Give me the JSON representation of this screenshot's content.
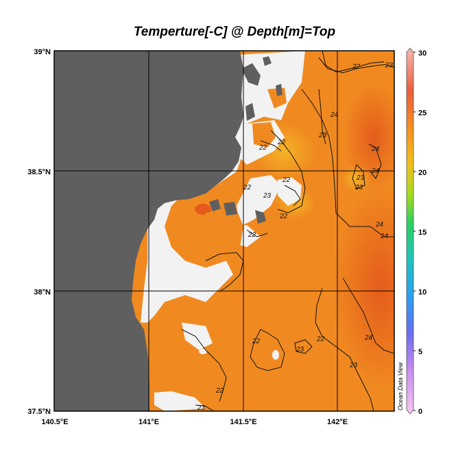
{
  "title": "Temperture[-C] @ Depth[m]=Top",
  "chart_data": {
    "type": "heatmap",
    "title": "Temperture[-C] @ Depth[m]=Top",
    "x_axis": {
      "ticks": [
        "140.5°E",
        "141°E",
        "141.5°E",
        "142°E"
      ],
      "range": [
        140.5,
        142.3
      ]
    },
    "y_axis": {
      "ticks": [
        "39°N",
        "38.5°N",
        "38°N",
        "37.5°N"
      ],
      "range": [
        37.5,
        39.0
      ]
    },
    "grid": true,
    "colorbar": {
      "ticks": [
        "30",
        "25",
        "20",
        "15",
        "10",
        "5",
        "0"
      ],
      "range": [
        0,
        30
      ]
    },
    "contour_labels": [
      "22",
      "23",
      "24"
    ],
    "colors": {
      "land": "#5f5f5f",
      "no_data": "#f2f2f2",
      "warm": "#f08a20",
      "hot": "#e8621c",
      "cool": "#f3b12a"
    },
    "watermark": "Ocean Data View"
  }
}
